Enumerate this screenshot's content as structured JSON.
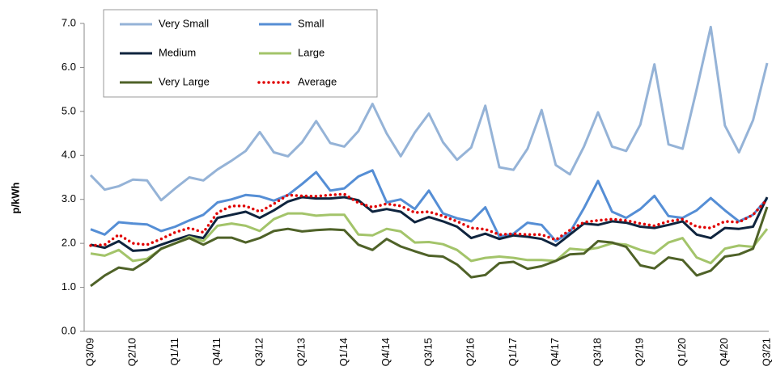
{
  "chart_data": {
    "type": "line",
    "y_label": "p/kWh",
    "categories": [
      "Q3/09",
      null,
      null,
      "Q2/10",
      null,
      null,
      "Q1/11",
      null,
      null,
      "Q4/11",
      null,
      null,
      "Q3/12",
      null,
      null,
      "Q2/13",
      null,
      null,
      "Q1/14",
      null,
      null,
      "Q4/14",
      null,
      null,
      "Q3/15",
      null,
      null,
      "Q2/16",
      null,
      null,
      "Q1/17",
      null,
      null,
      "Q4/17",
      null,
      null,
      "Q3/18",
      null,
      null,
      "Q2/19",
      null,
      null,
      "Q1/20",
      null,
      null,
      "Q4/20",
      null,
      null,
      "Q3/21"
    ],
    "series": [
      {
        "name": "Very Small",
        "color": "#95b3d7",
        "values": [
          3.55,
          3.22,
          3.3,
          3.45,
          3.43,
          2.98,
          3.25,
          3.5,
          3.43,
          3.68,
          3.88,
          4.1,
          4.53,
          4.07,
          3.98,
          4.3,
          4.78,
          4.28,
          4.2,
          4.55,
          5.17,
          4.5,
          3.98,
          4.52,
          4.95,
          4.3,
          3.9,
          4.18,
          5.13,
          3.73,
          3.67,
          4.15,
          5.03,
          3.78,
          3.57,
          4.2,
          4.98,
          4.2,
          4.1,
          4.7,
          6.07,
          4.25,
          4.15,
          5.5,
          6.92,
          4.68,
          4.07,
          4.8,
          6.1
        ]
      },
      {
        "name": "Small",
        "color": "#558ed5",
        "values": [
          2.32,
          2.2,
          2.48,
          2.45,
          2.43,
          2.28,
          2.38,
          2.52,
          2.65,
          2.93,
          3.0,
          3.1,
          3.07,
          2.97,
          3.1,
          3.35,
          3.62,
          3.2,
          3.25,
          3.52,
          3.66,
          2.93,
          3.0,
          2.78,
          3.2,
          2.68,
          2.57,
          2.5,
          2.82,
          2.15,
          2.22,
          2.47,
          2.42,
          2.05,
          2.25,
          2.8,
          3.42,
          2.72,
          2.58,
          2.78,
          3.08,
          2.62,
          2.58,
          2.75,
          3.03,
          2.75,
          2.5,
          2.65,
          3.02
        ]
      },
      {
        "name": "Medium",
        "color": "#0f243e",
        "values": [
          1.97,
          1.9,
          2.05,
          1.83,
          1.85,
          1.97,
          2.08,
          2.18,
          2.12,
          2.58,
          2.65,
          2.72,
          2.58,
          2.75,
          2.95,
          3.05,
          3.02,
          3.02,
          3.05,
          2.98,
          2.72,
          2.78,
          2.72,
          2.48,
          2.6,
          2.5,
          2.38,
          2.12,
          2.22,
          2.1,
          2.18,
          2.15,
          2.1,
          1.95,
          2.2,
          2.45,
          2.42,
          2.5,
          2.47,
          2.38,
          2.35,
          2.42,
          2.5,
          2.2,
          2.12,
          2.35,
          2.33,
          2.38,
          3.05
        ]
      },
      {
        "name": "Large",
        "color": "#a3c46a",
        "values": [
          1.77,
          1.72,
          1.85,
          1.6,
          1.65,
          1.87,
          2.0,
          2.15,
          2.05,
          2.4,
          2.45,
          2.4,
          2.28,
          2.55,
          2.68,
          2.68,
          2.63,
          2.65,
          2.65,
          2.2,
          2.18,
          2.33,
          2.27,
          2.02,
          2.03,
          1.98,
          1.85,
          1.6,
          1.67,
          1.7,
          1.67,
          1.62,
          1.62,
          1.6,
          1.88,
          1.85,
          1.9,
          2.0,
          1.97,
          1.85,
          1.77,
          2.02,
          2.12,
          1.68,
          1.55,
          1.88,
          1.95,
          1.92,
          2.33
        ]
      },
      {
        "name": "Very Large",
        "color": "#4f6228",
        "values": [
          1.03,
          1.27,
          1.45,
          1.4,
          1.6,
          1.88,
          2.0,
          2.12,
          1.97,
          2.13,
          2.13,
          2.02,
          2.12,
          2.28,
          2.33,
          2.27,
          2.3,
          2.32,
          2.3,
          1.97,
          1.85,
          2.1,
          1.93,
          1.82,
          1.72,
          1.7,
          1.52,
          1.23,
          1.28,
          1.55,
          1.58,
          1.42,
          1.48,
          1.6,
          1.75,
          1.77,
          2.05,
          2.02,
          1.92,
          1.5,
          1.43,
          1.68,
          1.62,
          1.27,
          1.38,
          1.7,
          1.75,
          1.88,
          2.83
        ]
      },
      {
        "name": "Average",
        "color": "#e00000",
        "dotted": true,
        "values": [
          1.95,
          1.97,
          2.2,
          2.0,
          1.97,
          2.1,
          2.25,
          2.35,
          2.25,
          2.7,
          2.85,
          2.85,
          2.72,
          2.9,
          3.1,
          3.08,
          3.07,
          3.1,
          3.12,
          2.92,
          2.82,
          2.9,
          2.85,
          2.7,
          2.72,
          2.62,
          2.5,
          2.35,
          2.32,
          2.2,
          2.22,
          2.2,
          2.2,
          2.08,
          2.3,
          2.48,
          2.52,
          2.55,
          2.52,
          2.45,
          2.4,
          2.5,
          2.55,
          2.38,
          2.35,
          2.5,
          2.48,
          2.65,
          3.0
        ]
      }
    ],
    "ylim": [
      0,
      7
    ],
    "yticks": [
      {
        "value": 0,
        "label": "0.0"
      },
      {
        "value": 1,
        "label": "1.0"
      },
      {
        "value": 2,
        "label": "2.0"
      },
      {
        "value": 3,
        "label": "3.0"
      },
      {
        "value": 4,
        "label": "4.0"
      },
      {
        "value": 5,
        "label": "5.0"
      },
      {
        "value": 6,
        "label": "6.0"
      },
      {
        "value": 7,
        "label": "7.0"
      }
    ],
    "grid": false,
    "legend": "upper left"
  }
}
